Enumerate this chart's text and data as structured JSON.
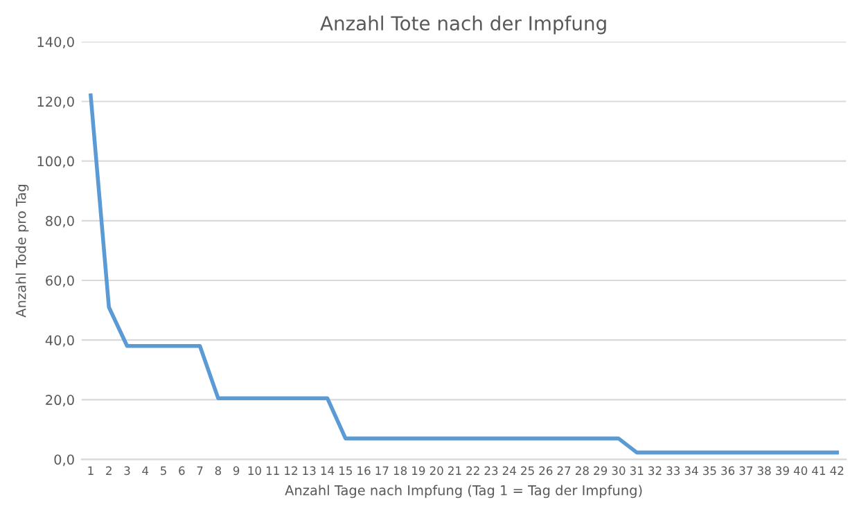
{
  "chart_data": {
    "type": "line",
    "title": "Anzahl Tote nach der Impfung",
    "xlabel": "Anzahl Tage nach Impfung (Tag 1 = Tag der Impfung)",
    "ylabel": "Anzahl Tode pro Tag",
    "categories": [
      "1",
      "2",
      "3",
      "4",
      "5",
      "6",
      "7",
      "8",
      "9",
      "10",
      "11",
      "12",
      "13",
      "14",
      "15",
      "16",
      "17",
      "18",
      "19",
      "20",
      "21",
      "22",
      "23",
      "24",
      "25",
      "26",
      "27",
      "28",
      "29",
      "30",
      "31",
      "32",
      "33",
      "34",
      "35",
      "36",
      "37",
      "38",
      "39",
      "40",
      "41",
      "42"
    ],
    "series": [
      {
        "color": "#5b9bd5",
        "values": [
          122,
          51,
          38,
          38,
          38,
          38,
          38,
          20.5,
          20.5,
          20.5,
          20.5,
          20.5,
          20.5,
          20.5,
          7,
          7,
          7,
          7,
          7,
          7,
          7,
          7,
          7,
          7,
          7,
          7,
          7,
          7,
          7,
          7,
          2.3,
          2.3,
          2.3,
          2.3,
          2.3,
          2.3,
          2.3,
          2.3,
          2.3,
          2.3,
          2.3,
          2.3
        ]
      }
    ],
    "ylim": [
      0,
      140
    ],
    "yticks": [
      {
        "value": 0,
        "label": "0,0"
      },
      {
        "value": 20,
        "label": "20,0"
      },
      {
        "value": 40,
        "label": "40,0"
      },
      {
        "value": 60,
        "label": "60,0"
      },
      {
        "value": 80,
        "label": "80,0"
      },
      {
        "value": 100,
        "label": "100,0"
      },
      {
        "value": 120,
        "label": "120,0"
      },
      {
        "value": 140,
        "label": "140,0"
      }
    ],
    "grid": "y",
    "marker": "none",
    "line_style": "solid"
  }
}
